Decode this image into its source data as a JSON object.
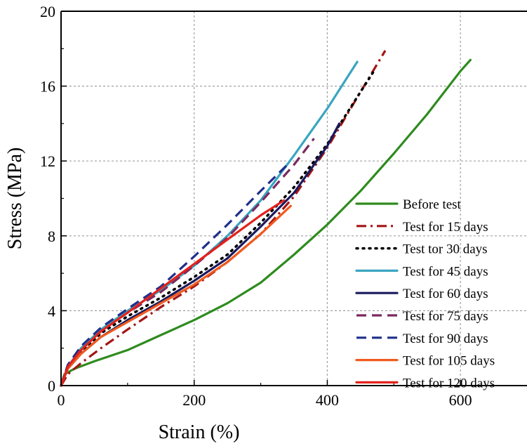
{
  "chart_data": {
    "type": "line",
    "title": "",
    "xlabel": "Strain (%)",
    "ylabel": "Stress (MPa)",
    "xlim": [
      0,
      700
    ],
    "ylim": [
      0,
      20
    ],
    "xticks": [
      0,
      200,
      400,
      600
    ],
    "yticks": [
      0,
      4,
      8,
      12,
      16,
      20
    ],
    "grid": true,
    "legend_position": "bottom-right",
    "series": [
      {
        "name": "Before test",
        "color": "#2e8b1e",
        "dash": "solid",
        "x": [
          0,
          5,
          20,
          50,
          100,
          150,
          200,
          250,
          300,
          350,
          400,
          450,
          500,
          550,
          600,
          615
        ],
        "y": [
          0,
          0.6,
          0.9,
          1.3,
          1.9,
          2.7,
          3.5,
          4.4,
          5.5,
          7.0,
          8.6,
          10.4,
          12.4,
          14.5,
          16.8,
          17.4
        ]
      },
      {
        "name": "Test for 15 days",
        "color": "#a31515",
        "dash": "dashdot",
        "x": [
          0,
          10,
          30,
          60,
          100,
          150,
          200,
          250,
          300,
          350,
          400,
          450,
          487
        ],
        "y": [
          0,
          0.6,
          1.2,
          2.0,
          3.0,
          4.2,
          5.3,
          6.6,
          8.1,
          10.1,
          12.7,
          15.7,
          17.9
        ]
      },
      {
        "name": "Test tor 30 days",
        "color": "#000000",
        "dash": "dotted",
        "x": [
          0,
          10,
          30,
          60,
          100,
          150,
          200,
          250,
          300,
          350,
          400,
          450,
          470
        ],
        "y": [
          0,
          0.9,
          1.8,
          2.8,
          3.7,
          4.7,
          5.8,
          7.0,
          8.7,
          10.6,
          12.9,
          15.7,
          16.8
        ]
      },
      {
        "name": "Test for 45 days",
        "color": "#3aa5c0",
        "dash": "solid",
        "x": [
          0,
          10,
          30,
          60,
          100,
          150,
          200,
          250,
          300,
          350,
          400,
          445
        ],
        "y": [
          0,
          1.0,
          2.0,
          3.0,
          4.0,
          5.1,
          6.4,
          8.0,
          9.9,
          12.3,
          14.8,
          17.3
        ]
      },
      {
        "name": "Test for 60 days",
        "color": "#1a1a5e",
        "dash": "solid",
        "x": [
          0,
          10,
          30,
          60,
          100,
          150,
          200,
          250,
          300,
          350,
          400,
          418
        ],
        "y": [
          0,
          0.9,
          1.7,
          2.6,
          3.5,
          4.5,
          5.6,
          6.8,
          8.5,
          10.3,
          12.8,
          14.0
        ]
      },
      {
        "name": "Test for 75 days",
        "color": "#7a2a5e",
        "dash": "dashed",
        "x": [
          0,
          10,
          30,
          60,
          100,
          150,
          200,
          250,
          300,
          350,
          380
        ],
        "y": [
          0,
          1.0,
          1.9,
          2.9,
          3.9,
          5.0,
          6.4,
          7.9,
          9.8,
          11.8,
          13.2
        ]
      },
      {
        "name": "Test for 90 days",
        "color": "#1f2f8a",
        "dash": "dashed",
        "x": [
          0,
          10,
          30,
          60,
          100,
          150,
          200,
          250,
          300,
          340
        ],
        "y": [
          0,
          1.1,
          2.1,
          3.1,
          4.1,
          5.3,
          6.9,
          8.6,
          10.4,
          11.8
        ]
      },
      {
        "name": "Test for 105 days",
        "color": "#f05a1e",
        "dash": "solid",
        "x": [
          0,
          10,
          30,
          60,
          100,
          150,
          200,
          250,
          300,
          345
        ],
        "y": [
          0,
          0.9,
          1.7,
          2.6,
          3.4,
          4.4,
          5.4,
          6.6,
          8.1,
          9.6
        ]
      },
      {
        "name": "Test for 120 days",
        "color": "#e3211c",
        "dash": "solid",
        "x": [
          0,
          10,
          30,
          60,
          100,
          150,
          200,
          250,
          300,
          335
        ],
        "y": [
          0,
          1.0,
          1.9,
          2.9,
          3.9,
          5.2,
          6.5,
          7.8,
          9.1,
          9.9
        ]
      }
    ]
  }
}
